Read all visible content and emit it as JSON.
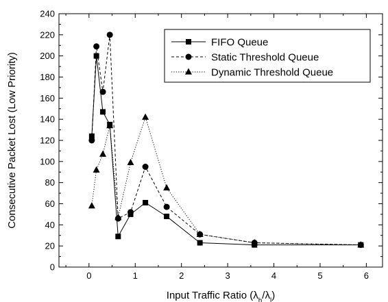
{
  "chart_data": {
    "type": "line",
    "title": "",
    "xlabel_main": "Input Traffic Ratio (",
    "xlabel_sym1": "λ",
    "xlabel_sub1": "h",
    "xlabel_slash": "/",
    "xlabel_sym2": "λ",
    "xlabel_sub2": "l",
    "xlabel_close": ")",
    "ylabel": "Consecutive Packet Lost (Low Priority)",
    "xlim": [
      -0.65,
      6.35
    ],
    "ylim": [
      0,
      240
    ],
    "x_ticks": [
      0,
      1,
      2,
      3,
      4,
      5,
      6
    ],
    "x_tick_labels": [
      "0",
      "1",
      "2",
      "3",
      "4",
      "5",
      "6"
    ],
    "y_ticks": [
      0,
      20,
      40,
      60,
      80,
      100,
      120,
      140,
      160,
      180,
      200,
      220,
      240
    ],
    "y_tick_labels": [
      "0",
      "20",
      "40",
      "60",
      "80",
      "100",
      "120",
      "140",
      "160",
      "180",
      "200",
      "220",
      "240"
    ],
    "grid": false,
    "legend_position": "top-right",
    "series": [
      {
        "name": "FIFO Queue",
        "marker": "square",
        "dash": "solid",
        "x": [
          0.06,
          0.16,
          0.3,
          0.45,
          0.63,
          0.9,
          1.22,
          1.68,
          2.4,
          3.58,
          5.88
        ],
        "y": [
          124,
          200,
          147,
          135,
          29,
          50,
          61,
          48,
          23,
          21,
          21
        ]
      },
      {
        "name": "Static Threshold Queue",
        "marker": "circle",
        "dash": "dashed",
        "x": [
          0.06,
          0.16,
          0.3,
          0.45,
          0.63,
          0.9,
          1.22,
          1.68,
          2.4,
          3.58,
          5.88
        ],
        "y": [
          120,
          209,
          166,
          220,
          46,
          52,
          95,
          57,
          31,
          23,
          21
        ]
      },
      {
        "name": "Dynamic Threshold Queue",
        "marker": "triangle",
        "dash": "dotted",
        "x": [
          0.06,
          0.16,
          0.3,
          0.45,
          0.63,
          0.9,
          1.22,
          1.68,
          2.4,
          3.58,
          5.88
        ],
        "y": [
          58,
          92,
          107,
          134,
          47,
          99,
          142,
          75,
          31,
          23,
          21
        ]
      }
    ]
  }
}
